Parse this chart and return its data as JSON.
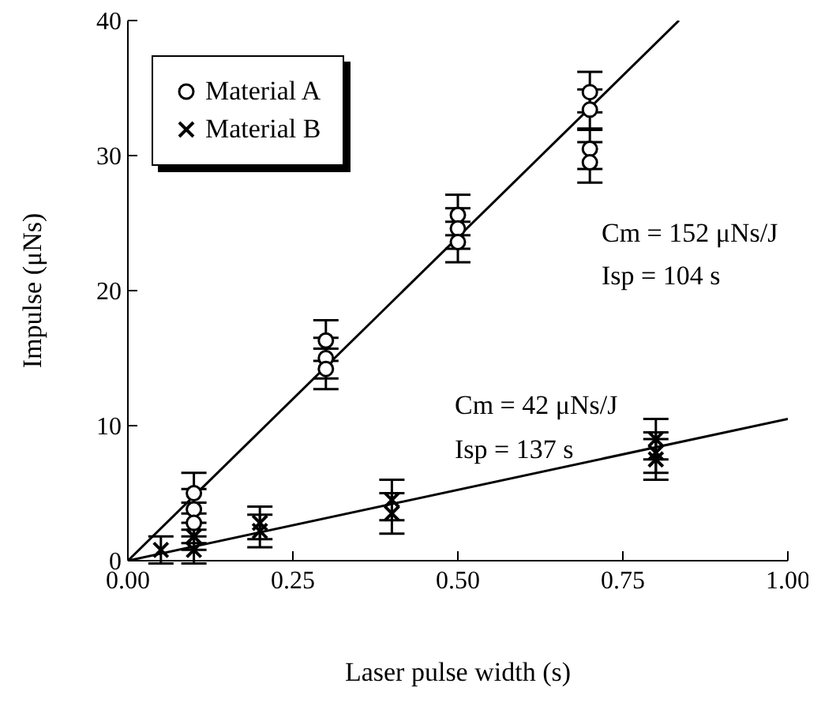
{
  "chart_data": {
    "type": "scatter",
    "xlabel": "Laser pulse width (s)",
    "ylabel": "Impulse (μNs)",
    "xlim": [
      0,
      1
    ],
    "xticks": [
      {
        "value": 0,
        "label": "0.00"
      },
      0.25,
      {
        "value": 0.5,
        "label": "0.50"
      },
      0.75,
      {
        "value": 1,
        "label": "1.00"
      }
    ],
    "ylim": [
      0,
      40
    ],
    "yticks": [
      0,
      10,
      20,
      30,
      40
    ],
    "grid": false,
    "legend": "top left",
    "series": [
      {
        "name": "Material A",
        "color": "#000000",
        "marker": "circle",
        "x": [
          0.1,
          0.1,
          0.1,
          0.3,
          0.3,
          0.3,
          0.5,
          0.5,
          0.5,
          0.7,
          0.7,
          0.7,
          0.7
        ],
        "values": [
          5,
          3.8,
          2.8,
          16.3,
          15,
          14.2,
          25.6,
          24.6,
          23.6,
          34.7,
          33.4,
          30.5,
          29.5
        ],
        "errors": [
          1.5,
          1.5,
          1.5,
          1.5,
          1.5,
          1.5,
          1.5,
          1.5,
          1.5,
          1.5,
          1.5,
          1.5,
          1.5
        ]
      },
      {
        "name": "Material B",
        "color": "#000000",
        "marker": "cross",
        "x": [
          0.05,
          0.1,
          0.1,
          0.2,
          0.2,
          0.4,
          0.4,
          0.8,
          0.8,
          0.8
        ],
        "values": [
          0.8,
          1.8,
          0.8,
          2.8,
          2.2,
          4.5,
          3.5,
          9,
          8,
          7.5
        ],
        "errors": [
          1,
          1,
          1,
          1.2,
          1.2,
          1.5,
          1.5,
          1.5,
          1.5,
          1.5
        ]
      },
      {
        "type": "line",
        "color": "#000000",
        "marker": "none",
        "x": [
          0,
          0.835
        ],
        "values": [
          0,
          40
        ]
      },
      {
        "type": "line",
        "color": "#000000",
        "marker": "none",
        "x": [
          0,
          1
        ],
        "values": [
          0,
          10.5
        ]
      }
    ],
    "annotations": [
      "Cm = 152 μNs/J",
      "Isp = 104 s",
      "Cm = 42 μNs/J",
      "Isp = 137 s"
    ]
  }
}
